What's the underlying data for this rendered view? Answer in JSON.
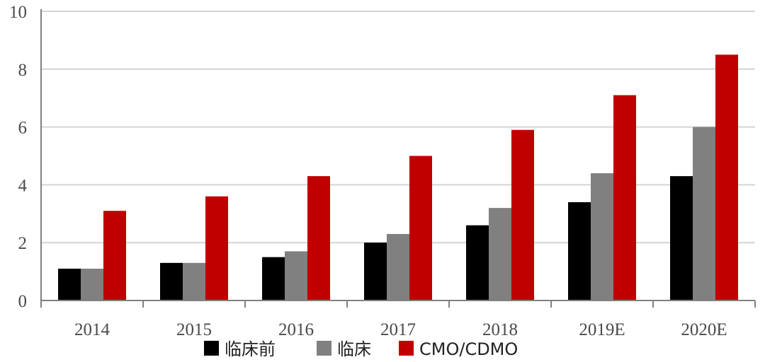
{
  "chart_data": {
    "type": "bar",
    "categories": [
      "2014",
      "2015",
      "2016",
      "2017",
      "2018",
      "2019E",
      "2020E"
    ],
    "series": [
      {
        "name": "临床前",
        "color": "#000000",
        "values": [
          1.1,
          1.3,
          1.5,
          2.0,
          2.6,
          3.4,
          4.3
        ]
      },
      {
        "name": "临床",
        "color": "#808080",
        "values": [
          1.1,
          1.3,
          1.7,
          2.3,
          3.2,
          4.4,
          6.0
        ]
      },
      {
        "name": "CMO/CDMO",
        "color": "#c00000",
        "values": [
          3.1,
          3.6,
          4.3,
          5.0,
          5.9,
          7.1,
          8.5
        ]
      }
    ],
    "ylim": [
      0,
      10
    ],
    "yticks": [
      "0",
      "2",
      "4",
      "6",
      "8",
      "10"
    ],
    "grid": true,
    "legend_position": "bottom-center"
  }
}
